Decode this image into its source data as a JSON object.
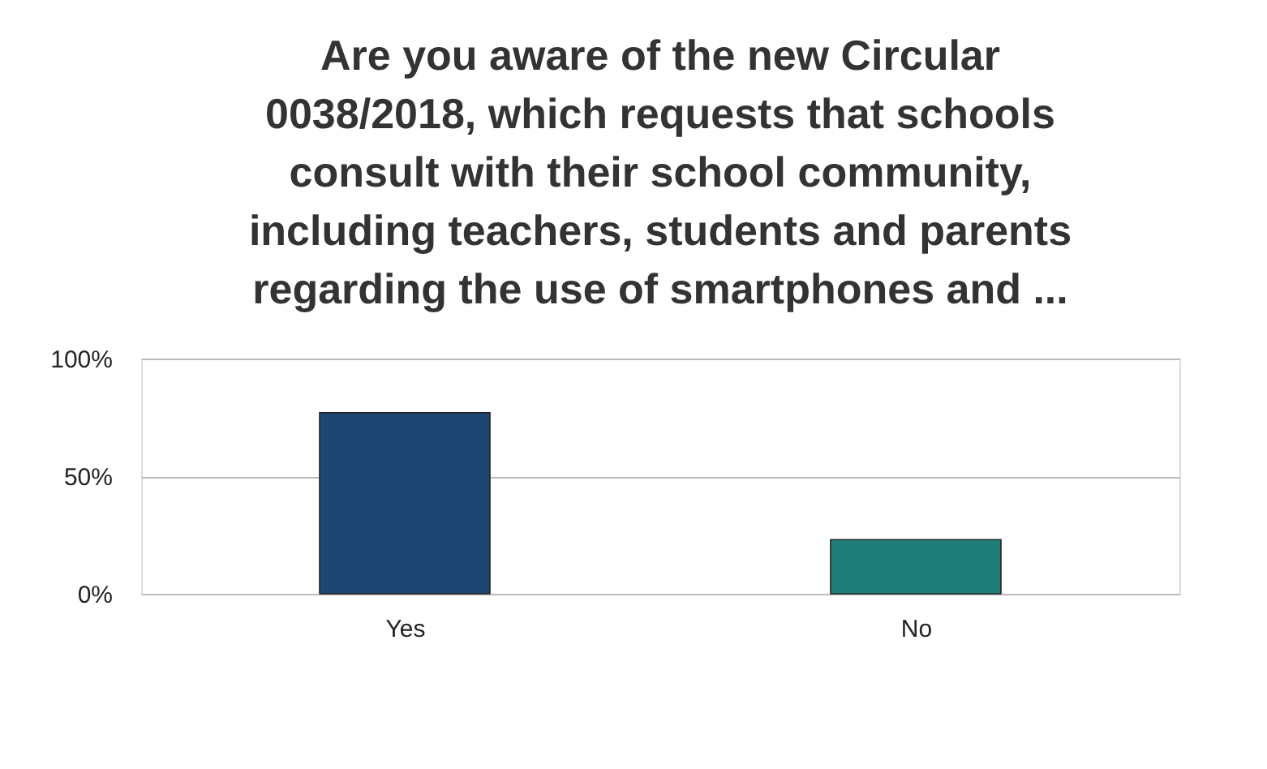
{
  "chart_data": {
    "type": "bar",
    "title": "Are you aware of the new Circular 0038/2018, which requests that schools consult with their school community, including teachers, students and parents regarding the use of smartphones and ...",
    "categories": [
      "Yes",
      "No"
    ],
    "values": [
      77,
      23
    ],
    "colors": [
      "#1e4673",
      "#1f7f78"
    ],
    "ylim": [
      0,
      100
    ],
    "yticks": [
      {
        "value": 0,
        "label": "0%"
      },
      {
        "value": 50,
        "label": "50%"
      },
      {
        "value": 100,
        "label": "100%"
      }
    ],
    "grid": "y",
    "legend": false
  }
}
